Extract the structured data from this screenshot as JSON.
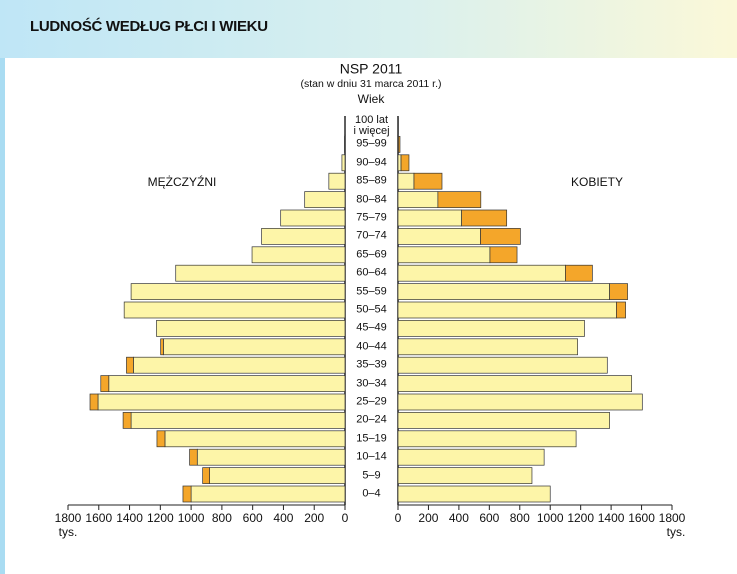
{
  "header": {
    "title": "LUDNOŚĆ WEDŁUG PŁCI I WIEKU"
  },
  "chart_data": {
    "type": "population-pyramid",
    "title": "NSP 2011",
    "subtitle": "(stan w dniu 31 marca 2011 r.)",
    "y_label": "Wiek",
    "x_unit": "tys.",
    "categories": [
      "0–4",
      "5–9",
      "10–14",
      "15–19",
      "20–24",
      "25–29",
      "30–34",
      "35–39",
      "40–44",
      "45–49",
      "50–54",
      "55–59",
      "60–64",
      "65–69",
      "70–74",
      "75–79",
      "80–84",
      "85–89",
      "90–94",
      "95–99",
      "100 lat\ni więcej"
    ],
    "xlim": [
      0,
      1800
    ],
    "xticks": [
      0,
      200,
      400,
      600,
      800,
      1000,
      1200,
      1400,
      1600,
      1800
    ],
    "series": [
      {
        "name": "MĘŻCZYŹNI",
        "side": "left",
        "color": "#fdf5a8",
        "excess_color": "#f4a62a",
        "values": [
          1000,
          880,
          960,
          1170,
          1390,
          1605,
          1535,
          1375,
          1180,
          1225,
          1435,
          1390,
          1100,
          604,
          542,
          418,
          262,
          105,
          20,
          3,
          1
        ],
        "excess": [
          53,
          45,
          50,
          52,
          52,
          52,
          52,
          45,
          18,
          0,
          0,
          0,
          0,
          0,
          0,
          0,
          0,
          0,
          0,
          0,
          0
        ]
      },
      {
        "name": "KOBIETY",
        "side": "right",
        "color": "#fdf5a8",
        "excess_color": "#f4a62a",
        "values": [
          1000,
          880,
          960,
          1170,
          1390,
          1605,
          1535,
          1375,
          1180,
          1225,
          1435,
          1390,
          1100,
          604,
          542,
          418,
          262,
          105,
          20,
          3,
          1
        ],
        "excess": [
          0,
          0,
          0,
          0,
          0,
          0,
          0,
          0,
          0,
          0,
          60,
          118,
          177,
          178,
          262,
          296,
          282,
          184,
          52,
          10,
          1
        ]
      }
    ]
  }
}
